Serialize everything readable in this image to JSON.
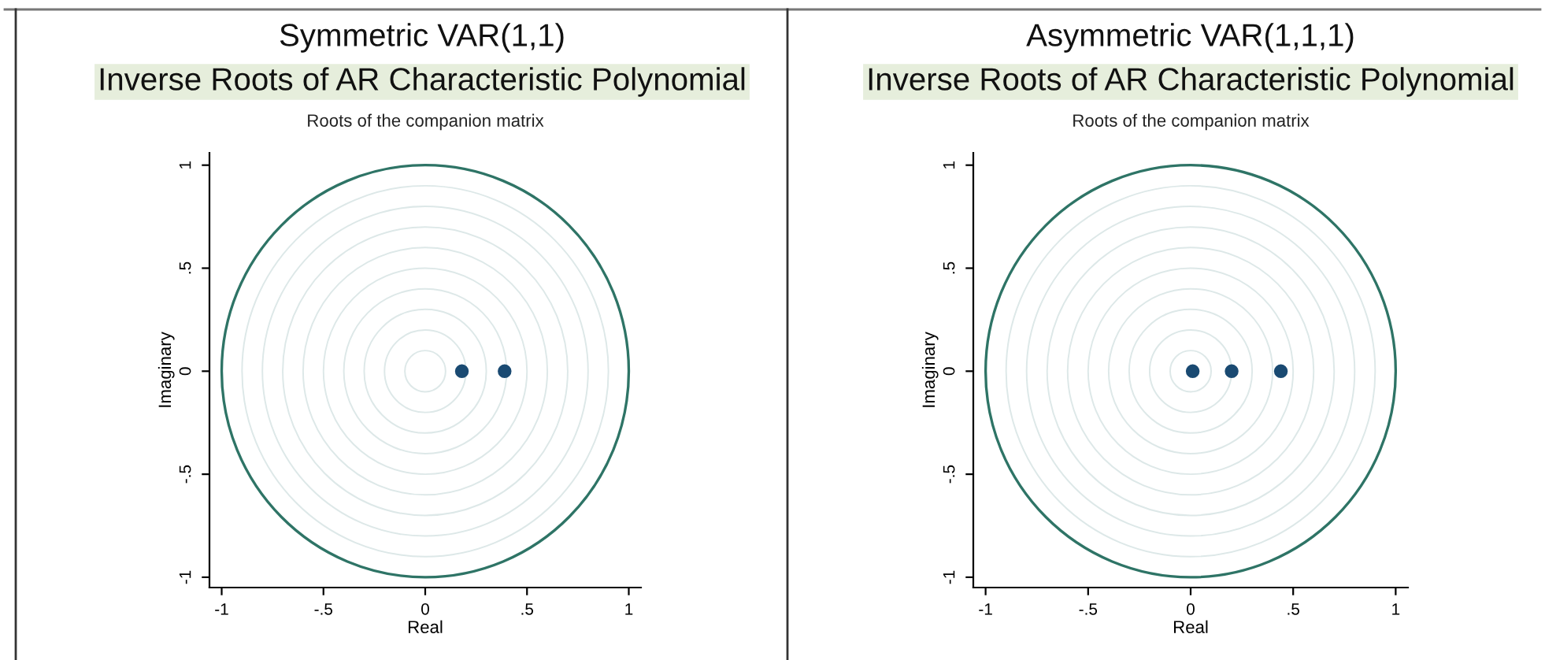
{
  "chart_data": [
    {
      "type": "scatter",
      "title": "Symmetric VAR(1,1)",
      "subtitle": "Inverse Roots of AR Characteristic Polynomial",
      "annotations": [
        "Roots of the companion matrix"
      ],
      "xlabel": "Real",
      "ylabel": "Imaginary",
      "xlim": [
        -1.06,
        1.06
      ],
      "ylim": [
        -1.05,
        1.06
      ],
      "xticks": [
        {
          "value": -1,
          "label": "-1"
        },
        {
          "value": -0.5,
          "label": "-.5"
        },
        0,
        {
          "value": 0.5,
          "label": ".5"
        },
        1
      ],
      "yticks": [
        {
          "value": -1,
          "label": "-1"
        },
        {
          "value": -0.5,
          "label": "-.5"
        },
        0,
        {
          "value": 0.5,
          "label": ".5"
        },
        1
      ],
      "series": [
        {
          "color": "#1a4a72",
          "marker": "circle",
          "x": [
            0.18,
            0.39
          ],
          "values": [
            0,
            0
          ]
        }
      ]
    },
    {
      "type": "scatter",
      "title": "Asymmetric VAR(1,1,1)",
      "subtitle": "Inverse Roots of AR Characteristic Polynomial",
      "annotations": [
        "Roots of the companion matrix"
      ],
      "xlabel": "Real",
      "ylabel": "Imaginary",
      "xlim": [
        -1.06,
        1.06
      ],
      "ylim": [
        -1.05,
        1.06
      ],
      "xticks": [
        {
          "value": -1,
          "label": "-1"
        },
        {
          "value": -0.5,
          "label": "-.5"
        },
        0,
        {
          "value": 0.5,
          "label": ".5"
        },
        1
      ],
      "yticks": [
        {
          "value": -1,
          "label": "-1"
        },
        {
          "value": -0.5,
          "label": "-.5"
        },
        0,
        {
          "value": 0.5,
          "label": ".5"
        },
        1
      ],
      "series": [
        {
          "color": "#1a4a72",
          "marker": "circle",
          "x": [
            0.01,
            0.2,
            0.44
          ],
          "values": [
            0,
            0,
            0
          ]
        }
      ]
    }
  ]
}
